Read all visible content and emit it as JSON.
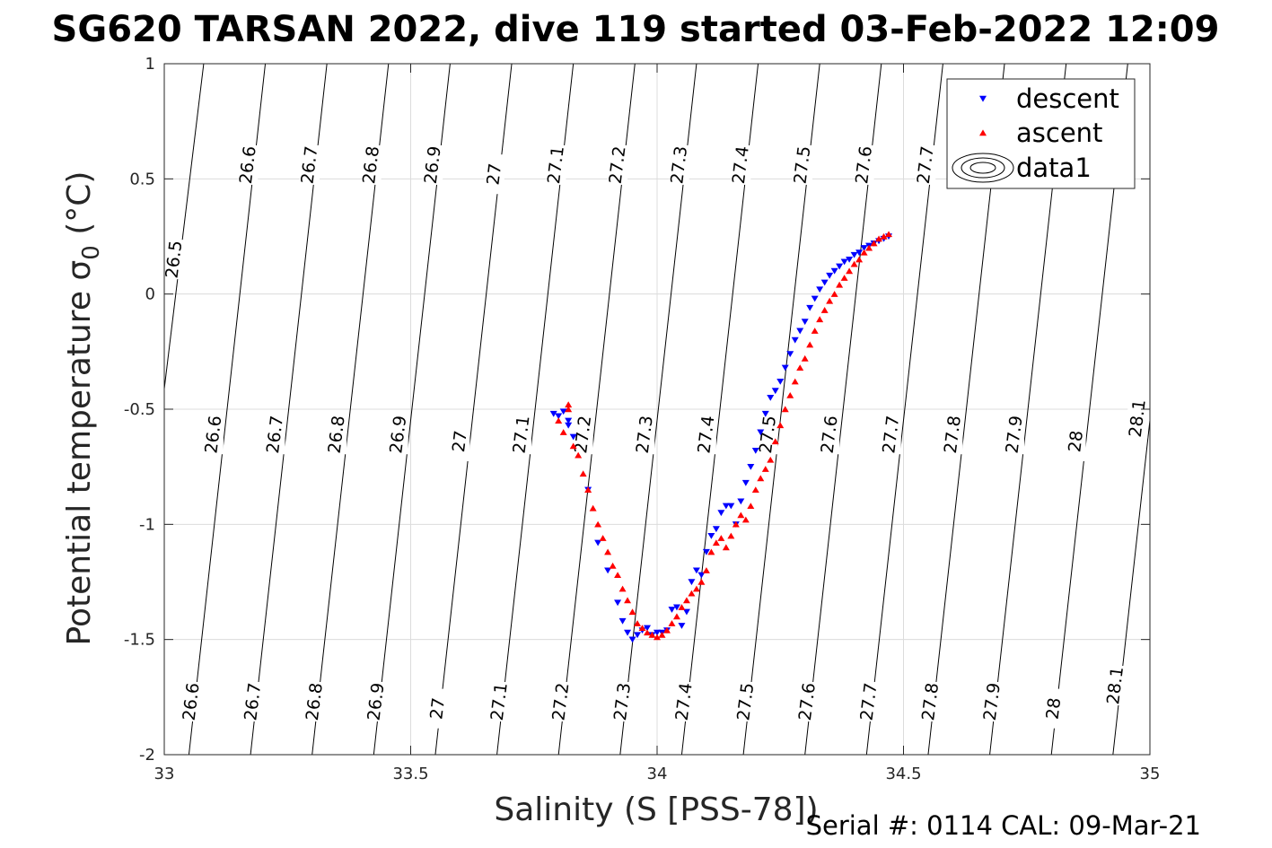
{
  "chart_data": {
    "type": "scatter",
    "title": "SG620 TARSAN 2022, dive 119 started 03-Feb-2022 12:09",
    "xlabel": "Salinity (S [PSS-78])",
    "ylabel_main": "Potential temperature ",
    "ylabel_sigma": "σ",
    "ylabel_sub": "0",
    "ylabel_unit": " (°C)",
    "footer": "Serial #: 0114  CAL: 09-Mar-21",
    "xlim": [
      33,
      35
    ],
    "ylim": [
      -2,
      1
    ],
    "xticks": [
      33,
      33.5,
      34,
      34.5,
      35
    ],
    "yticks": [
      -2,
      -1.5,
      -1,
      -0.5,
      0,
      0.5,
      1
    ],
    "xtick_labels": [
      "33",
      "33.5",
      "34",
      "34.5",
      "35"
    ],
    "ytick_labels": [
      "-2",
      "-1.5",
      "-1",
      "-0.5",
      "0",
      "0.5",
      "1"
    ],
    "grid": true,
    "legend_position": "top-right",
    "legend": [
      "descent",
      "ascent",
      "data1"
    ],
    "contour_levels": [
      "26.5",
      "26.6",
      "26.7",
      "26.8",
      "26.9",
      "27",
      "27.1",
      "27.2",
      "27.3",
      "27.4",
      "27.5",
      "27.6",
      "27.7",
      "27.8",
      "27.9",
      "28",
      "28.1"
    ],
    "contour_lines": [
      {
        "level": "26.5",
        "x_top": 33.08,
        "x_bottom": 32.91
      },
      {
        "level": "26.6",
        "x_top": 33.205,
        "x_bottom": 33.05
      },
      {
        "level": "26.7",
        "x_top": 33.33,
        "x_bottom": 33.175
      },
      {
        "level": "26.8",
        "x_top": 33.455,
        "x_bottom": 33.3
      },
      {
        "level": "26.9",
        "x_top": 33.58,
        "x_bottom": 33.425
      },
      {
        "level": "27",
        "x_top": 33.705,
        "x_bottom": 33.55
      },
      {
        "level": "27.1",
        "x_top": 33.83,
        "x_bottom": 33.675
      },
      {
        "level": "27.2",
        "x_top": 33.955,
        "x_bottom": 33.8
      },
      {
        "level": "27.3",
        "x_top": 34.08,
        "x_bottom": 33.925
      },
      {
        "level": "27.4",
        "x_top": 34.205,
        "x_bottom": 34.05
      },
      {
        "level": "27.5",
        "x_top": 34.33,
        "x_bottom": 34.175
      },
      {
        "level": "27.6",
        "x_top": 34.455,
        "x_bottom": 34.3
      },
      {
        "level": "27.7",
        "x_top": 34.58,
        "x_bottom": 34.425
      },
      {
        "level": "27.8",
        "x_top": 34.705,
        "x_bottom": 34.55
      },
      {
        "level": "27.9",
        "x_top": 34.83,
        "x_bottom": 34.675
      },
      {
        "level": "28",
        "x_top": 34.955,
        "x_bottom": 34.8
      },
      {
        "level": "28.1",
        "x_top": 35.08,
        "x_bottom": 34.925
      }
    ],
    "contour_labels": [
      {
        "text": "26.5",
        "x": 33.02,
        "y": 0.15
      },
      {
        "text": "26.6",
        "x": 33.17,
        "y": 0.56
      },
      {
        "text": "26.7",
        "x": 33.295,
        "y": 0.56
      },
      {
        "text": "26.8",
        "x": 33.42,
        "y": 0.56
      },
      {
        "text": "26.9",
        "x": 33.545,
        "y": 0.56
      },
      {
        "text": "27",
        "x": 33.67,
        "y": 0.52
      },
      {
        "text": "27.1",
        "x": 33.795,
        "y": 0.56
      },
      {
        "text": "27.2",
        "x": 33.92,
        "y": 0.56
      },
      {
        "text": "27.3",
        "x": 34.045,
        "y": 0.56
      },
      {
        "text": "27.4",
        "x": 34.17,
        "y": 0.56
      },
      {
        "text": "27.5",
        "x": 34.295,
        "y": 0.56
      },
      {
        "text": "27.6",
        "x": 34.42,
        "y": 0.56
      },
      {
        "text": "27.7",
        "x": 34.545,
        "y": 0.56
      },
      {
        "text": "26.6",
        "x": 33.1,
        "y": -0.61
      },
      {
        "text": "26.7",
        "x": 33.225,
        "y": -0.61
      },
      {
        "text": "26.8",
        "x": 33.35,
        "y": -0.61
      },
      {
        "text": "26.9",
        "x": 33.475,
        "y": -0.61
      },
      {
        "text": "27",
        "x": 33.6,
        "y": -0.64
      },
      {
        "text": "27.1",
        "x": 33.725,
        "y": -0.61
      },
      {
        "text": "27.2",
        "x": 33.85,
        "y": -0.61
      },
      {
        "text": "27.3",
        "x": 33.975,
        "y": -0.61
      },
      {
        "text": "27.4",
        "x": 34.1,
        "y": -0.61
      },
      {
        "text": "27.5",
        "x": 34.225,
        "y": -0.61
      },
      {
        "text": "27.6",
        "x": 34.35,
        "y": -0.61
      },
      {
        "text": "27.7",
        "x": 34.475,
        "y": -0.61
      },
      {
        "text": "27.8",
        "x": 34.6,
        "y": -0.61
      },
      {
        "text": "27.9",
        "x": 34.725,
        "y": -0.61
      },
      {
        "text": "28",
        "x": 34.85,
        "y": -0.64
      },
      {
        "text": "28.1",
        "x": 34.975,
        "y": -0.54
      },
      {
        "text": "26.6",
        "x": 33.055,
        "y": -1.77
      },
      {
        "text": "26.7",
        "x": 33.18,
        "y": -1.77
      },
      {
        "text": "26.8",
        "x": 33.305,
        "y": -1.77
      },
      {
        "text": "26.9",
        "x": 33.43,
        "y": -1.77
      },
      {
        "text": "27",
        "x": 33.555,
        "y": -1.8
      },
      {
        "text": "27.1",
        "x": 33.68,
        "y": -1.77
      },
      {
        "text": "27.2",
        "x": 33.805,
        "y": -1.77
      },
      {
        "text": "27.3",
        "x": 33.93,
        "y": -1.77
      },
      {
        "text": "27.4",
        "x": 34.055,
        "y": -1.77
      },
      {
        "text": "27.5",
        "x": 34.18,
        "y": -1.77
      },
      {
        "text": "27.6",
        "x": 34.305,
        "y": -1.77
      },
      {
        "text": "27.7",
        "x": 34.43,
        "y": -1.77
      },
      {
        "text": "27.8",
        "x": 34.555,
        "y": -1.77
      },
      {
        "text": "27.9",
        "x": 34.68,
        "y": -1.77
      },
      {
        "text": "28",
        "x": 34.805,
        "y": -1.8
      },
      {
        "text": "28.1",
        "x": 34.93,
        "y": -1.7
      }
    ],
    "series": [
      {
        "name": "descent",
        "color": "#0000ff",
        "marker": "triangle-down",
        "x": [
          33.79,
          33.8,
          33.81,
          33.82,
          33.82,
          33.83,
          33.86,
          33.88,
          33.9,
          33.92,
          33.93,
          33.94,
          33.95,
          33.96,
          33.97,
          33.98,
          33.99,
          34.0,
          34.01,
          34.02,
          34.03,
          34.04,
          34.05,
          34.06,
          34.07,
          34.08,
          34.09,
          34.1,
          34.11,
          34.12,
          34.13,
          34.14,
          34.15,
          34.16,
          34.17,
          34.18,
          34.19,
          34.2,
          34.21,
          34.22,
          34.23,
          34.24,
          34.25,
          34.26,
          34.27,
          34.28,
          34.29,
          34.3,
          34.31,
          34.32,
          34.33,
          34.34,
          34.35,
          34.36,
          34.37,
          34.38,
          34.39,
          34.4,
          34.41,
          34.42,
          34.43,
          34.44,
          34.45,
          34.46,
          34.47
        ],
        "y": [
          -0.52,
          -0.53,
          -0.51,
          -0.55,
          -0.57,
          -0.62,
          -0.85,
          -1.08,
          -1.2,
          -1.34,
          -1.42,
          -1.47,
          -1.5,
          -1.48,
          -1.46,
          -1.45,
          -1.48,
          -1.47,
          -1.47,
          -1.46,
          -1.37,
          -1.36,
          -1.44,
          -1.38,
          -1.25,
          -1.2,
          -1.22,
          -1.12,
          -1.05,
          -1.02,
          -0.95,
          -0.92,
          -0.92,
          -1.0,
          -0.9,
          -0.82,
          -0.75,
          -0.68,
          -0.6,
          -0.52,
          -0.45,
          -0.42,
          -0.38,
          -0.32,
          -0.26,
          -0.2,
          -0.16,
          -0.12,
          -0.06,
          -0.02,
          0.02,
          0.05,
          0.08,
          0.1,
          0.12,
          0.14,
          0.15,
          0.17,
          0.18,
          0.2,
          0.21,
          0.22,
          0.23,
          0.24,
          0.25
        ]
      },
      {
        "name": "ascent",
        "color": "#ff0000",
        "marker": "triangle-up",
        "x": [
          33.8,
          33.81,
          33.82,
          33.82,
          33.83,
          33.84,
          33.85,
          33.86,
          33.87,
          33.88,
          33.89,
          33.9,
          33.91,
          33.92,
          33.93,
          33.94,
          33.95,
          33.96,
          33.97,
          33.98,
          33.99,
          34.0,
          34.01,
          34.02,
          34.03,
          34.04,
          34.05,
          34.06,
          34.07,
          34.08,
          34.09,
          34.1,
          34.11,
          34.12,
          34.13,
          34.14,
          34.15,
          34.16,
          34.17,
          34.18,
          34.19,
          34.2,
          34.21,
          34.22,
          34.23,
          34.24,
          34.25,
          34.26,
          34.27,
          34.28,
          34.29,
          34.3,
          34.31,
          34.32,
          34.33,
          34.34,
          34.35,
          34.36,
          34.37,
          34.38,
          34.39,
          34.4,
          34.41,
          34.42,
          34.43,
          34.44,
          34.45,
          34.46,
          34.47
        ],
        "y": [
          -0.55,
          -0.6,
          -0.5,
          -0.48,
          -0.66,
          -0.7,
          -0.78,
          -0.85,
          -0.93,
          -1.0,
          -1.06,
          -1.12,
          -1.18,
          -1.22,
          -1.28,
          -1.33,
          -1.38,
          -1.43,
          -1.45,
          -1.47,
          -1.48,
          -1.49,
          -1.48,
          -1.46,
          -1.43,
          -1.4,
          -1.36,
          -1.33,
          -1.3,
          -1.28,
          -1.25,
          -1.2,
          -1.12,
          -1.08,
          -1.06,
          -1.1,
          -1.05,
          -1.0,
          -0.96,
          -0.98,
          -0.92,
          -0.85,
          -0.8,
          -0.76,
          -0.72,
          -0.64,
          -0.57,
          -0.5,
          -0.44,
          -0.38,
          -0.32,
          -0.28,
          -0.22,
          -0.16,
          -0.11,
          -0.07,
          -0.03,
          0.0,
          0.04,
          0.07,
          0.1,
          0.13,
          0.15,
          0.18,
          0.2,
          0.22,
          0.24,
          0.25,
          0.26
        ]
      }
    ]
  }
}
